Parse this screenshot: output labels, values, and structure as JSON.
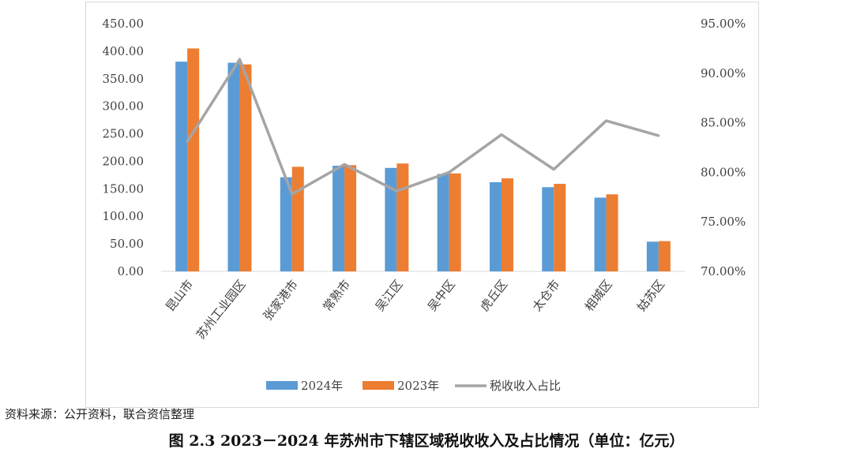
{
  "chart_data": {
    "type": "bar",
    "categories": [
      "昆山市",
      "苏州工业园区",
      "张家港市",
      "常熟市",
      "吴江区",
      "吴中区",
      "虎丘区",
      "太仓市",
      "相城区",
      "姑苏区"
    ],
    "series": [
      {
        "name": "2024年",
        "kind": "bar",
        "axis": "left",
        "color": "#5b9bd5",
        "values": [
          381,
          379,
          171,
          192,
          188,
          177,
          162,
          153,
          134,
          54
        ]
      },
      {
        "name": "2023年",
        "kind": "bar",
        "axis": "left",
        "color": "#ed7d31",
        "values": [
          405,
          376,
          190,
          193,
          196,
          178,
          169,
          159,
          140,
          55
        ]
      },
      {
        "name": "税收收入占比",
        "kind": "line",
        "axis": "right",
        "color": "#a5a5a5",
        "values": [
          83.1,
          91.4,
          77.8,
          80.8,
          78.1,
          80.0,
          83.8,
          80.3,
          85.2,
          83.7
        ]
      }
    ],
    "y_left": {
      "range": [
        0,
        450
      ],
      "ticks": [
        "0.00",
        "50.00",
        "100.00",
        "150.00",
        "200.00",
        "250.00",
        "300.00",
        "350.00",
        "400.00",
        "450.00"
      ]
    },
    "y_right": {
      "range": [
        70,
        95
      ],
      "ticks": [
        "70.00%",
        "75.00%",
        "80.00%",
        "85.00%",
        "90.00%",
        "95.00%"
      ]
    },
    "legend_position": "bottom",
    "grid": false
  },
  "source_text": "资料来源：公开资料，联合资信整理",
  "caption": "图 2.3    2023－2024 年苏州市下辖区域税收收入及占比情况（单位：亿元）"
}
